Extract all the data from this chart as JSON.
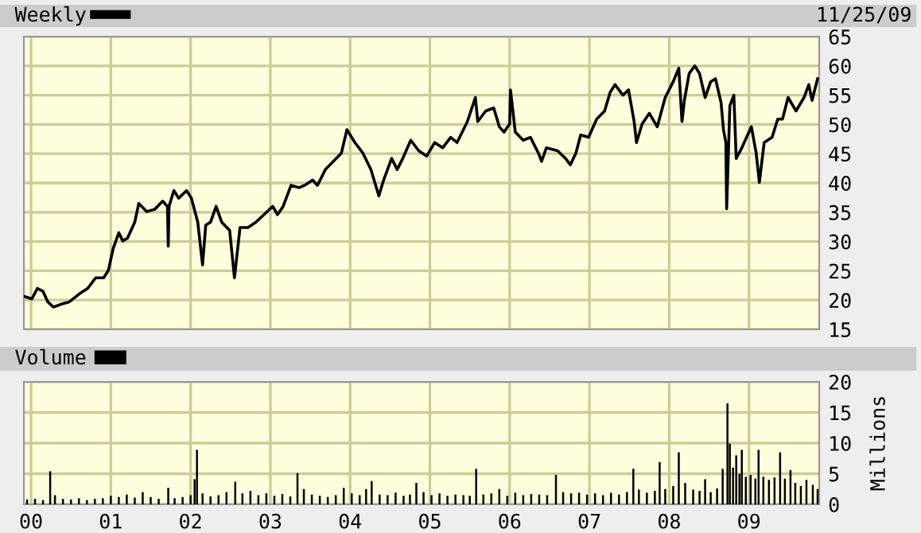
{
  "chart_data": [
    {
      "type": "line",
      "annotations": [
        "11/25/09"
      ],
      "legend": "top left",
      "grid": true,
      "tick_labels": "y",
      "line_style": "solid",
      "marker": "none",
      "xlim": [
        1999.91,
        2009.88
      ],
      "xticks": [
        {
          "value": 2000,
          "label": null
        },
        {
          "value": 2001,
          "label": null
        },
        {
          "value": 2002,
          "label": null
        },
        {
          "value": 2003,
          "label": null
        },
        {
          "value": 2004,
          "label": null
        },
        {
          "value": 2005,
          "label": null
        },
        {
          "value": 2006,
          "label": null
        },
        {
          "value": 2007,
          "label": null
        },
        {
          "value": 2008,
          "label": null
        },
        {
          "value": 2009,
          "label": null
        }
      ],
      "ylim": [
        15,
        65
      ],
      "yticks": [
        15,
        20,
        25,
        30,
        35,
        40,
        45,
        50,
        55,
        60,
        65
      ],
      "series": [
        {
          "name": "Weekly",
          "color": "#000000",
          "x": [
            1999.92,
            2000.01,
            2000.08,
            2000.15,
            2000.21,
            2000.28,
            2000.38,
            2000.48,
            2000.61,
            2000.71,
            2000.81,
            2000.91,
            2000.97,
            2001.03,
            2001.1,
            2001.15,
            2001.21,
            2001.3,
            2001.35,
            2001.45,
            2001.55,
            2001.65,
            2001.71,
            2001.72,
            2001.73,
            2001.79,
            2001.85,
            2001.95,
            2002.01,
            2002.09,
            2002.15,
            2002.19,
            2002.25,
            2002.32,
            2002.39,
            2002.49,
            2002.55,
            2002.62,
            2002.72,
            2002.82,
            2002.92,
            2003.03,
            2003.09,
            2003.16,
            2003.26,
            2003.36,
            2003.43,
            2003.53,
            2003.59,
            2003.69,
            2003.79,
            2003.89,
            2003.96,
            2004.06,
            2004.16,
            2004.26,
            2004.32,
            2004.36,
            2004.42,
            2004.52,
            2004.59,
            2004.66,
            2004.76,
            2004.86,
            2004.96,
            2005.06,
            2005.16,
            2005.26,
            2005.34,
            2005.47,
            2005.57,
            2005.6,
            2005.7,
            2005.8,
            2005.87,
            2005.93,
            2006.0,
            2006.01,
            2006.07,
            2006.17,
            2006.26,
            2006.36,
            2006.4,
            2006.46,
            2006.6,
            2006.7,
            2006.76,
            2006.83,
            2006.89,
            2006.99,
            2007.09,
            2007.19,
            2007.26,
            2007.32,
            2007.42,
            2007.49,
            2007.56,
            2007.59,
            2007.66,
            2007.75,
            2007.85,
            2007.95,
            2008.05,
            2008.12,
            2008.16,
            2008.19,
            2008.25,
            2008.32,
            2008.38,
            2008.45,
            2008.52,
            2008.58,
            2008.65,
            2008.68,
            2008.71,
            2008.72,
            2008.76,
            2008.81,
            2008.84,
            2008.91,
            2008.97,
            2009.03,
            2009.09,
            2009.13,
            2009.19,
            2009.29,
            2009.36,
            2009.42,
            2009.49,
            2009.59,
            2009.69,
            2009.75,
            2009.79,
            2009.86
          ],
          "values": [
            20.6,
            20.2,
            22.0,
            21.5,
            19.7,
            18.8,
            19.3,
            19.7,
            21.1,
            22.0,
            23.8,
            23.8,
            25.1,
            28.8,
            31.5,
            30.1,
            30.6,
            33.3,
            36.5,
            35.1,
            35.5,
            36.9,
            36.0,
            29.2,
            36.0,
            38.7,
            37.4,
            38.7,
            37.4,
            33.3,
            26.0,
            32.8,
            33.3,
            36.0,
            33.3,
            31.9,
            23.8,
            32.4,
            32.4,
            33.3,
            34.6,
            36.0,
            34.6,
            36.0,
            39.6,
            39.2,
            39.6,
            40.5,
            39.6,
            42.3,
            43.7,
            45.1,
            49.1,
            46.9,
            45.1,
            42.3,
            39.6,
            37.8,
            40.5,
            44.2,
            42.3,
            44.2,
            47.3,
            45.5,
            44.6,
            46.9,
            46.0,
            47.8,
            46.9,
            50.5,
            54.6,
            50.5,
            52.3,
            52.8,
            49.6,
            48.7,
            50.1,
            55.9,
            48.7,
            47.3,
            47.8,
            45.1,
            43.7,
            46.0,
            45.5,
            44.2,
            43.1,
            45.1,
            48.2,
            47.8,
            50.9,
            52.3,
            55.5,
            56.8,
            55.0,
            55.9,
            50.5,
            46.9,
            50.1,
            51.9,
            49.6,
            54.6,
            57.3,
            59.6,
            50.5,
            54.1,
            58.7,
            60.0,
            58.7,
            54.6,
            57.3,
            57.8,
            53.7,
            49.1,
            46.9,
            35.6,
            53.2,
            55.0,
            44.2,
            46.0,
            47.8,
            49.6,
            45.1,
            40.1,
            46.9,
            47.8,
            50.9,
            50.9,
            54.6,
            52.3,
            54.6,
            56.8,
            54.1,
            57.8
          ]
        }
      ]
    },
    {
      "type": "bar",
      "ylabel": "Millions",
      "legend": "top left",
      "grid": true,
      "xlim": [
        1999.91,
        2009.88
      ],
      "xticks": [
        {
          "value": 2000,
          "label": "00"
        },
        {
          "value": 2001,
          "label": "01"
        },
        {
          "value": 2002,
          "label": "02"
        },
        {
          "value": 2003,
          "label": "03"
        },
        {
          "value": 2004,
          "label": "04"
        },
        {
          "value": 2005,
          "label": "05"
        },
        {
          "value": 2006,
          "label": "06"
        },
        {
          "value": 2007,
          "label": "07"
        },
        {
          "value": 2008,
          "label": "08"
        },
        {
          "value": 2009,
          "label": "09"
        }
      ],
      "ylim": [
        0,
        20
      ],
      "yticks": [
        0,
        5,
        10,
        15,
        20
      ],
      "series": [
        {
          "name": "Volume",
          "color": "#000000",
          "x": [
            1999.95,
            2000.05,
            2000.15,
            2000.24,
            2000.3,
            2000.4,
            2000.5,
            2000.6,
            2000.7,
            2000.8,
            2000.9,
            2001.0,
            2001.1,
            2001.2,
            2001.3,
            2001.4,
            2001.5,
            2001.6,
            2001.72,
            2001.8,
            2001.9,
            2002.0,
            2002.05,
            2002.08,
            2002.15,
            2002.25,
            2002.35,
            2002.45,
            2002.56,
            2002.65,
            2002.75,
            2002.85,
            2002.95,
            2003.05,
            2003.15,
            2003.25,
            2003.34,
            2003.42,
            2003.52,
            2003.62,
            2003.72,
            2003.82,
            2003.92,
            2004.02,
            2004.12,
            2004.2,
            2004.27,
            2004.37,
            2004.47,
            2004.57,
            2004.67,
            2004.75,
            2004.83,
            2004.92,
            2005.02,
            2005.12,
            2005.22,
            2005.32,
            2005.42,
            2005.5,
            2005.58,
            2005.67,
            2005.77,
            2005.87,
            2005.97,
            2006.07,
            2006.17,
            2006.27,
            2006.37,
            2006.47,
            2006.58,
            2006.67,
            2006.77,
            2006.87,
            2006.97,
            2007.07,
            2007.17,
            2007.27,
            2007.37,
            2007.47,
            2007.55,
            2007.62,
            2007.72,
            2007.82,
            2007.88,
            2007.95,
            2008.05,
            2008.12,
            2008.2,
            2008.3,
            2008.38,
            2008.45,
            2008.52,
            2008.6,
            2008.67,
            2008.73,
            2008.76,
            2008.8,
            2008.84,
            2008.88,
            2008.91,
            2008.96,
            2009.02,
            2009.08,
            2009.12,
            2009.18,
            2009.25,
            2009.32,
            2009.39,
            2009.45,
            2009.52,
            2009.58,
            2009.65,
            2009.72,
            2009.8,
            2009.86
          ],
          "values": [
            0.8,
            0.9,
            0.7,
            5.4,
            1.5,
            0.9,
            0.8,
            1.0,
            0.7,
            0.9,
            1.0,
            1.4,
            1.2,
            1.6,
            1.1,
            2.0,
            1.2,
            0.9,
            2.7,
            1.0,
            1.2,
            1.5,
            4.1,
            8.9,
            1.8,
            1.3,
            1.5,
            2.0,
            3.7,
            1.8,
            2.2,
            1.5,
            1.8,
            1.4,
            1.7,
            1.3,
            5.1,
            2.5,
            1.6,
            1.4,
            1.2,
            1.5,
            2.7,
            1.8,
            1.5,
            2.5,
            3.8,
            1.6,
            1.5,
            1.9,
            1.4,
            1.6,
            3.5,
            2.0,
            1.5,
            1.8,
            1.4,
            1.6,
            1.5,
            1.4,
            5.8,
            1.6,
            1.8,
            2.5,
            1.4,
            1.9,
            1.5,
            1.7,
            1.6,
            1.5,
            4.8,
            2.0,
            1.8,
            1.9,
            1.6,
            1.8,
            1.5,
            1.9,
            1.6,
            2.0,
            5.8,
            2.4,
            1.9,
            2.2,
            6.9,
            2.5,
            3.0,
            8.5,
            3.5,
            2.4,
            2.2,
            4.1,
            2.0,
            2.6,
            5.8,
            16.5,
            9.9,
            6.0,
            8.0,
            5.0,
            8.9,
            4.5,
            4.8,
            4.2,
            8.9,
            4.5,
            4.0,
            4.4,
            8.5,
            4.2,
            5.6,
            3.5,
            3.0,
            4.0,
            3.2,
            2.5
          ]
        }
      ]
    }
  ]
}
